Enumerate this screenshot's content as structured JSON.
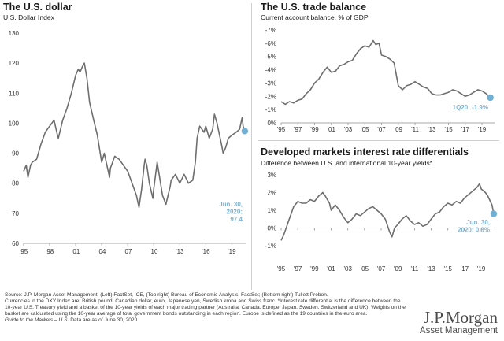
{
  "colors": {
    "series": "#6e6e6e",
    "marker": "#6fb0d4",
    "callout": "#7fb3d2"
  },
  "charts": {
    "dollar": {
      "title": "The U.S. dollar",
      "subtitle": "U.S. Dollar Index",
      "callout": [
        "Jun. 30,",
        "2020:",
        "97.4"
      ]
    },
    "trade": {
      "title": "The U.S. trade balance",
      "subtitle": "Current account balance, % of GDP",
      "callout": [
        "1Q20: -1.9%"
      ]
    },
    "rates": {
      "title": "Developed markets interest rate differentials",
      "subtitle": "Difference between U.S. and international 10-year yields*",
      "callout": [
        "Jun. 30,",
        "2020: 0.8%"
      ]
    }
  },
  "chart_data": [
    {
      "id": "dollar",
      "type": "line",
      "title": "The U.S. dollar",
      "ylabel": "U.S. Dollar Index",
      "ylim": [
        60,
        130
      ],
      "yticks": [
        60,
        70,
        80,
        90,
        100,
        110,
        120,
        130
      ],
      "ytick_labels": [
        "60",
        "70",
        "80",
        "90",
        "100",
        "110",
        "120",
        "130"
      ],
      "xlim": [
        1995,
        2020.6
      ],
      "xticks": [
        1995,
        1998,
        2001,
        2004,
        2007,
        2010,
        2013,
        2016,
        2019
      ],
      "xtick_labels": [
        "'95",
        "'98",
        "'01",
        "'04",
        "'07",
        "'10",
        "'13",
        "'16",
        "'19"
      ],
      "points": [
        [
          1995,
          84
        ],
        [
          1995.3,
          86
        ],
        [
          1995.5,
          82
        ],
        [
          1995.8,
          86
        ],
        [
          1996,
          87
        ],
        [
          1996.5,
          88
        ],
        [
          1997,
          93
        ],
        [
          1997.5,
          97
        ],
        [
          1998,
          99
        ],
        [
          1998.5,
          101
        ],
        [
          1998.9,
          96
        ],
        [
          1999,
          95
        ],
        [
          1999.5,
          101
        ],
        [
          2000,
          105
        ],
        [
          2000.5,
          110
        ],
        [
          2001,
          116
        ],
        [
          2001.3,
          118
        ],
        [
          2001.5,
          117
        ],
        [
          2001.8,
          119
        ],
        [
          2002,
          120
        ],
        [
          2002.3,
          115
        ],
        [
          2002.6,
          107
        ],
        [
          2003,
          102
        ],
        [
          2003.5,
          96
        ],
        [
          2004,
          87
        ],
        [
          2004.3,
          90
        ],
        [
          2004.9,
          82
        ],
        [
          2005,
          85
        ],
        [
          2005.5,
          89
        ],
        [
          2006,
          88
        ],
        [
          2006.5,
          86
        ],
        [
          2007,
          84
        ],
        [
          2007.5,
          80
        ],
        [
          2008,
          76
        ],
        [
          2008.3,
          72
        ],
        [
          2008.6,
          78
        ],
        [
          2008.9,
          86
        ],
        [
          2009,
          88
        ],
        [
          2009.2,
          86
        ],
        [
          2009.5,
          80
        ],
        [
          2009.9,
          75
        ],
        [
          2010,
          78
        ],
        [
          2010.4,
          87
        ],
        [
          2010.9,
          78
        ],
        [
          2011,
          76
        ],
        [
          2011.4,
          73
        ],
        [
          2011.9,
          79
        ],
        [
          2012,
          81
        ],
        [
          2012.5,
          83
        ],
        [
          2013,
          80
        ],
        [
          2013.5,
          83
        ],
        [
          2014,
          80
        ],
        [
          2014.5,
          81
        ],
        [
          2014.8,
          87
        ],
        [
          2015,
          95
        ],
        [
          2015.3,
          99
        ],
        [
          2015.8,
          97
        ],
        [
          2016,
          99
        ],
        [
          2016.4,
          95
        ],
        [
          2016.8,
          98
        ],
        [
          2017,
          103
        ],
        [
          2017.3,
          100
        ],
        [
          2017.8,
          93
        ],
        [
          2018,
          90
        ],
        [
          2018.3,
          92
        ],
        [
          2018.6,
          95
        ],
        [
          2019,
          96
        ],
        [
          2019.5,
          97
        ],
        [
          2019.9,
          98
        ],
        [
          2020.2,
          102
        ],
        [
          2020.3,
          99
        ],
        [
          2020.5,
          97.4
        ]
      ],
      "marker": {
        "x": 2020.5,
        "y": 97.4,
        "label": "Jun. 30, 2020: 97.4"
      }
    },
    {
      "id": "trade",
      "type": "line",
      "title": "The U.S. trade balance",
      "ylabel": "Current account balance, % of GDP",
      "ylim": [
        0,
        -7
      ],
      "yticks": [
        0,
        -1,
        -2,
        -3,
        -4,
        -5,
        -6,
        -7
      ],
      "ytick_labels": [
        "0%",
        "-1%",
        "-2%",
        "-3%",
        "-4%",
        "-5%",
        "-6%",
        "-7%"
      ],
      "xlim": [
        1995,
        2020.5
      ],
      "xticks": [
        1995,
        1997,
        1999,
        2001,
        2003,
        2005,
        2007,
        2009,
        2011,
        2013,
        2015,
        2017,
        2019
      ],
      "xtick_labels": [
        "'95",
        "'97",
        "'99",
        "'01",
        "'03",
        "'05",
        "'07",
        "'09",
        "'11",
        "'13",
        "'15",
        "'17",
        "'19"
      ],
      "points": [
        [
          1995,
          -1.6
        ],
        [
          1995.5,
          -1.4
        ],
        [
          1996,
          -1.6
        ],
        [
          1996.5,
          -1.5
        ],
        [
          1997,
          -1.7
        ],
        [
          1997.5,
          -1.8
        ],
        [
          1998,
          -2.2
        ],
        [
          1998.5,
          -2.5
        ],
        [
          1999,
          -3.0
        ],
        [
          1999.5,
          -3.3
        ],
        [
          2000,
          -3.8
        ],
        [
          2000.5,
          -4.2
        ],
        [
          2001,
          -3.8
        ],
        [
          2001.5,
          -3.9
        ],
        [
          2002,
          -4.3
        ],
        [
          2002.5,
          -4.4
        ],
        [
          2003,
          -4.6
        ],
        [
          2003.5,
          -4.7
        ],
        [
          2004,
          -5.2
        ],
        [
          2004.5,
          -5.6
        ],
        [
          2005,
          -5.8
        ],
        [
          2005.5,
          -5.7
        ],
        [
          2006,
          -6.2
        ],
        [
          2006.3,
          -5.9
        ],
        [
          2006.7,
          -6.0
        ],
        [
          2007,
          -5.1
        ],
        [
          2007.5,
          -5.0
        ],
        [
          2008,
          -4.8
        ],
        [
          2008.5,
          -4.5
        ],
        [
          2009,
          -2.8
        ],
        [
          2009.5,
          -2.5
        ],
        [
          2010,
          -2.8
        ],
        [
          2010.5,
          -2.9
        ],
        [
          2011,
          -3.1
        ],
        [
          2011.5,
          -2.9
        ],
        [
          2012,
          -2.7
        ],
        [
          2012.5,
          -2.6
        ],
        [
          2013,
          -2.2
        ],
        [
          2013.5,
          -2.1
        ],
        [
          2014,
          -2.1
        ],
        [
          2014.5,
          -2.2
        ],
        [
          2015,
          -2.3
        ],
        [
          2015.5,
          -2.5
        ],
        [
          2016,
          -2.4
        ],
        [
          2016.5,
          -2.2
        ],
        [
          2017,
          -2.0
        ],
        [
          2017.5,
          -2.1
        ],
        [
          2018,
          -2.3
        ],
        [
          2018.5,
          -2.5
        ],
        [
          2019,
          -2.4
        ],
        [
          2019.5,
          -2.2
        ],
        [
          2020,
          -1.9
        ]
      ],
      "marker": {
        "x": 2020,
        "y": -1.9,
        "label": "1Q20: -1.9%"
      }
    },
    {
      "id": "rates",
      "type": "line",
      "title": "Developed markets interest rate differentials",
      "ylabel": "Difference between U.S. and international 10-year yields*",
      "ylim": [
        -1,
        3
      ],
      "yticks": [
        -1,
        0,
        1,
        2,
        3
      ],
      "ytick_labels": [
        "-1%",
        "0%",
        "1%",
        "2%",
        "3%"
      ],
      "xlim": [
        1995,
        2020.6
      ],
      "xticks": [
        1995,
        1997,
        1999,
        2001,
        2003,
        2005,
        2007,
        2009,
        2011,
        2013,
        2015,
        2017,
        2019
      ],
      "xtick_labels": [
        "'95",
        "'97",
        "'99",
        "'01",
        "'03",
        "'05",
        "'07",
        "'09",
        "'11",
        "'13",
        "'15",
        "'17",
        "'19"
      ],
      "points": [
        [
          1995,
          -0.7
        ],
        [
          1995.3,
          -0.4
        ],
        [
          1995.6,
          0.0
        ],
        [
          1995.9,
          0.4
        ],
        [
          1996.2,
          0.8
        ],
        [
          1996.5,
          1.2
        ],
        [
          1997,
          1.5
        ],
        [
          1997.5,
          1.4
        ],
        [
          1998,
          1.4
        ],
        [
          1998.5,
          1.6
        ],
        [
          1999,
          1.5
        ],
        [
          1999.5,
          1.8
        ],
        [
          2000,
          2.0
        ],
        [
          2000.3,
          1.8
        ],
        [
          2000.8,
          1.4
        ],
        [
          2001,
          1.0
        ],
        [
          2001.5,
          1.3
        ],
        [
          2002,
          1.0
        ],
        [
          2002.5,
          0.6
        ],
        [
          2003,
          0.3
        ],
        [
          2003.5,
          0.5
        ],
        [
          2004,
          0.8
        ],
        [
          2004.5,
          0.7
        ],
        [
          2005,
          0.9
        ],
        [
          2005.5,
          1.1
        ],
        [
          2006,
          1.2
        ],
        [
          2006.5,
          1.0
        ],
        [
          2007,
          0.8
        ],
        [
          2007.5,
          0.5
        ],
        [
          2008,
          -0.2
        ],
        [
          2008.3,
          -0.5
        ],
        [
          2008.6,
          0.0
        ],
        [
          2009,
          0.2
        ],
        [
          2009.5,
          0.5
        ],
        [
          2010,
          0.7
        ],
        [
          2010.5,
          0.4
        ],
        [
          2011,
          0.2
        ],
        [
          2011.5,
          0.3
        ],
        [
          2012,
          0.1
        ],
        [
          2012.5,
          0.2
        ],
        [
          2013,
          0.5
        ],
        [
          2013.5,
          0.8
        ],
        [
          2014,
          0.9
        ],
        [
          2014.5,
          1.2
        ],
        [
          2015,
          1.4
        ],
        [
          2015.5,
          1.3
        ],
        [
          2016,
          1.5
        ],
        [
          2016.5,
          1.4
        ],
        [
          2017,
          1.7
        ],
        [
          2017.5,
          1.9
        ],
        [
          2018,
          2.1
        ],
        [
          2018.5,
          2.3
        ],
        [
          2018.8,
          2.5
        ],
        [
          2019,
          2.2
        ],
        [
          2019.5,
          2.0
        ],
        [
          2019.8,
          1.8
        ],
        [
          2020,
          1.6
        ],
        [
          2020.3,
          1.3
        ],
        [
          2020.5,
          0.8
        ]
      ],
      "marker": {
        "x": 2020.5,
        "y": 0.8,
        "label": "Jun. 30, 2020: 0.8%"
      }
    }
  ],
  "footnote": {
    "lines": [
      "Source: J.P. Morgan Asset Management; (Left) FactSet, ICE, (Top right) Bureau of Economic Analysis, FactSet; (Bottom right) Tullett Prebon.",
      "Currencies in the DXY Index are: British pound, Canadian dollar, euro, Japanese yen, Swedish krona and Swiss franc. *Interest rate differential is the difference between the 10-year U.S. Treasury yield and a basket of the 10-year yields of each major trading partner (Australia, Canada, Europe, Japan, Sweden, Switzerland and UK). Weights on the basket are calculated using the 10-year average of total government bonds outstanding in each region. Europe is defined as the 19 countries in the euro area."
    ],
    "guide_italic": "Guide to the Markets – U.S.",
    "guide_rest": " Data are as of June 30, 2020."
  },
  "brand": {
    "name": "J.P.Morgan",
    "sub": "Asset Management"
  }
}
